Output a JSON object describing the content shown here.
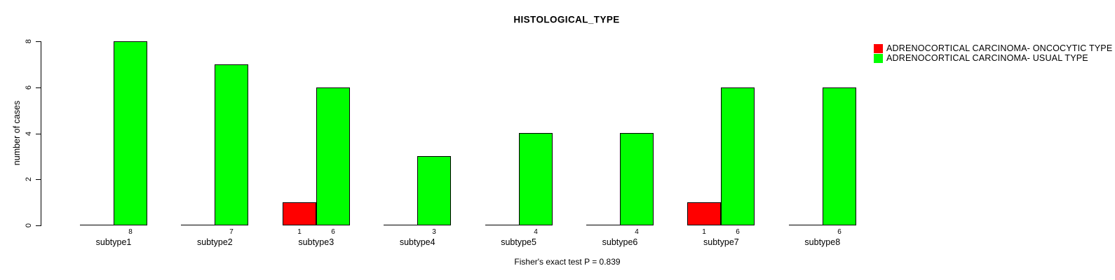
{
  "chart_data": {
    "type": "bar",
    "title": "HISTOLOGICAL_TYPE",
    "ylabel": "number of cases",
    "xlabel": "",
    "categories": [
      "subtype1",
      "subtype2",
      "subtype3",
      "subtype4",
      "subtype5",
      "subtype6",
      "subtype7",
      "subtype8"
    ],
    "series": [
      {
        "name": "ADRENOCORTICAL CARCINOMA- ONCOCYTIC TYPE",
        "color": "#ff0000",
        "values": [
          0,
          0,
          1,
          0,
          0,
          0,
          1,
          0
        ]
      },
      {
        "name": "ADRENOCORTICAL CARCINOMA- USUAL TYPE",
        "color": "#00ff00",
        "values": [
          8,
          7,
          6,
          3,
          4,
          4,
          6,
          6
        ]
      }
    ],
    "ylim": [
      0,
      8
    ],
    "yticks": [
      0,
      2,
      4,
      6,
      8
    ],
    "bar_value_labels_shown_when_positive": true,
    "legend_position": "top-right",
    "grid": false,
    "annotation": "Fisher's exact test P = 0.839"
  },
  "colors": {
    "axis": "#000000",
    "text": "#000000",
    "background": "#ffffff",
    "oncocytic": "#ff0000",
    "usual": "#00ff00"
  }
}
